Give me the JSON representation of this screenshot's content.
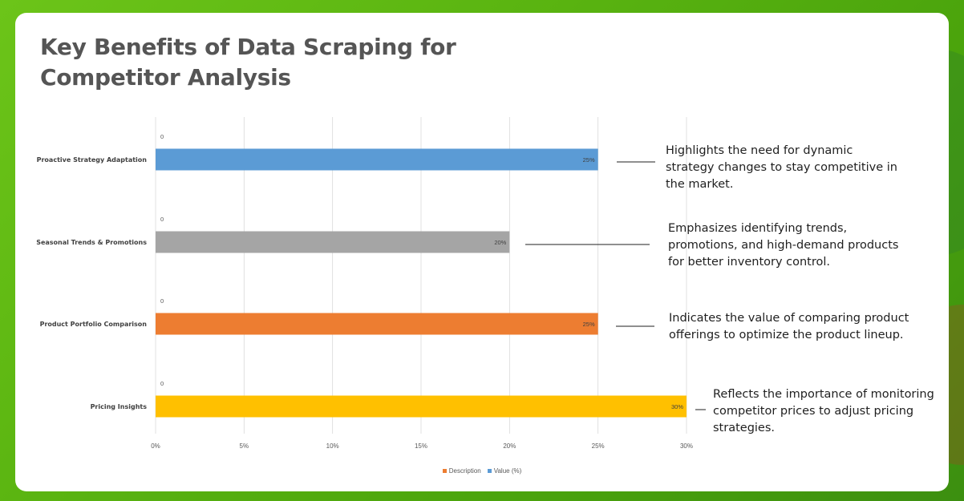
{
  "page": {
    "title_line1": "Key Benefits of Data Scraping for",
    "title_line2": "Competitor Analysis"
  },
  "chart_data": {
    "type": "bar",
    "orientation": "horizontal",
    "categories": [
      "Proactive Strategy Adaptation",
      "Seasonal Trends & Promotions",
      "Product Portfolio Comparison",
      "Pricing Insights"
    ],
    "series": [
      {
        "name": "Description",
        "values": [
          0,
          0,
          0,
          0
        ]
      },
      {
        "name": "Value (%)",
        "values": [
          25,
          20,
          25,
          30
        ]
      }
    ],
    "value_labels": [
      "25%",
      "20%",
      "25%",
      "30%"
    ],
    "zero_labels": [
      "0",
      "0",
      "0",
      "0"
    ],
    "bar_colors": [
      "#5b9bd5",
      "#a5a5a5",
      "#ed7d31",
      "#ffc000"
    ],
    "xticks": [
      "0%",
      "5%",
      "10%",
      "15%",
      "20%",
      "25%",
      "30%"
    ],
    "xlim": [
      0,
      30
    ],
    "grid": true,
    "legend_position": "bottom",
    "legend_colors": {
      "Description": "#ed7d31",
      "Value (%)": "#5b9bd5"
    },
    "annotations": [
      "Highlights the need for dynamic strategy changes to stay competitive in the market.",
      "Emphasizes identifying trends, promotions, and high-demand products for better inventory control.",
      "Indicates the value of comparing product offerings to optimize the product lineup.",
      "Reflects the importance of monitoring competitor prices to adjust pricing strategies."
    ]
  }
}
